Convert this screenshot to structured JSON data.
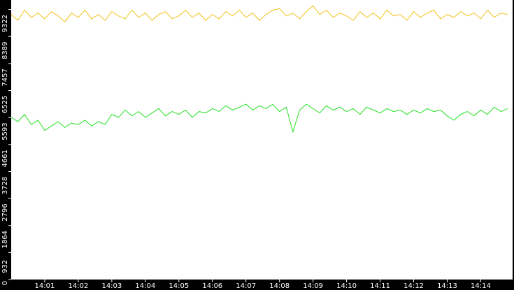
{
  "chart_data": {
    "type": "line",
    "x": [
      840,
      840.2,
      840.4,
      840.6,
      840.8,
      841,
      841.2,
      841.4,
      841.6,
      841.8,
      842,
      842.2,
      842.4,
      842.6,
      842.8,
      843,
      843.2,
      843.4,
      843.6,
      843.8,
      844,
      844.2,
      844.4,
      844.6,
      844.8,
      845,
      845.2,
      845.4,
      845.6,
      845.8,
      846,
      846.2,
      846.4,
      846.6,
      846.8,
      847,
      847.2,
      847.4,
      847.6,
      847.8,
      848,
      848.2,
      848.4,
      848.6,
      848.8,
      849,
      849.2,
      849.4,
      849.6,
      849.8,
      850,
      850.2,
      850.4,
      850.6,
      850.8,
      851,
      851.2,
      851.4,
      851.6,
      851.8,
      852,
      852.2,
      852.4,
      852.6,
      852.8,
      853,
      853.2,
      853.4,
      853.6,
      853.8,
      854,
      854.2,
      854.4,
      854.6,
      854.8
    ],
    "series": [
      {
        "color": "#f2c21e",
        "values": [
          9150,
          8950,
          9300,
          9050,
          9200,
          9000,
          9250,
          9100,
          8900,
          9200,
          9050,
          9300,
          9000,
          9150,
          8950,
          9250,
          9100,
          9000,
          9300,
          9050,
          9200,
          8950,
          9150,
          9250,
          9000,
          9100,
          9300,
          9050,
          9200,
          8950,
          9150,
          9000,
          9250,
          9100,
          9300,
          9050,
          9200,
          8950,
          9150,
          9300,
          9350,
          9100,
          9200,
          9000,
          9250,
          9450,
          9150,
          9300,
          9050,
          9200,
          9100,
          8950,
          9250,
          9050,
          9200,
          9000,
          9300,
          9100,
          9150,
          8950,
          9250,
          9050,
          9200,
          9300,
          9000,
          9150,
          9050,
          9250,
          9100,
          9200,
          9000,
          9300,
          9050,
          9200,
          9150
        ]
      },
      {
        "color": "#22e022",
        "values": [
          5600,
          5450,
          5700,
          5350,
          5500,
          5150,
          5300,
          5450,
          5250,
          5400,
          5350,
          5500,
          5300,
          5450,
          5350,
          5700,
          5600,
          5850,
          5650,
          5800,
          5600,
          5750,
          5900,
          5650,
          5800,
          5700,
          5850,
          5600,
          5800,
          5750,
          5900,
          5800,
          6000,
          5850,
          5950,
          6050,
          5850,
          6000,
          5900,
          6050,
          5800,
          5950,
          5100,
          5850,
          6050,
          5900,
          5750,
          6000,
          5850,
          5950,
          5800,
          5900,
          5700,
          5950,
          5850,
          5750,
          5900,
          5800,
          5850,
          5700,
          5850,
          5750,
          5900,
          5800,
          5850,
          5650,
          5500,
          5700,
          5800,
          5650,
          5850,
          5700,
          5950,
          5800,
          5900
        ]
      }
    ],
    "xlim": [
      840,
      854.95
    ],
    "xticks": [
      {
        "value": 841,
        "label": "14:01"
      },
      {
        "value": 842,
        "label": "14:02"
      },
      {
        "value": 843,
        "label": "14:03"
      },
      {
        "value": 844,
        "label": "14:04"
      },
      {
        "value": 845,
        "label": "14:05"
      },
      {
        "value": 846,
        "label": "14:06"
      },
      {
        "value": 847,
        "label": "14:07"
      },
      {
        "value": 848,
        "label": "14:08"
      },
      {
        "value": 849,
        "label": "14:09"
      },
      {
        "value": 850,
        "label": "14:10"
      },
      {
        "value": 851,
        "label": "14:11"
      },
      {
        "value": 852,
        "label": "14:12"
      },
      {
        "value": 853,
        "label": "14:13"
      },
      {
        "value": 854,
        "label": "14:14"
      }
    ],
    "ylim": [
      0,
      9650
    ],
    "yticks": [
      0,
      932,
      1864,
      2796,
      3728,
      4661,
      5593,
      6525,
      7457,
      8389,
      9322
    ]
  }
}
